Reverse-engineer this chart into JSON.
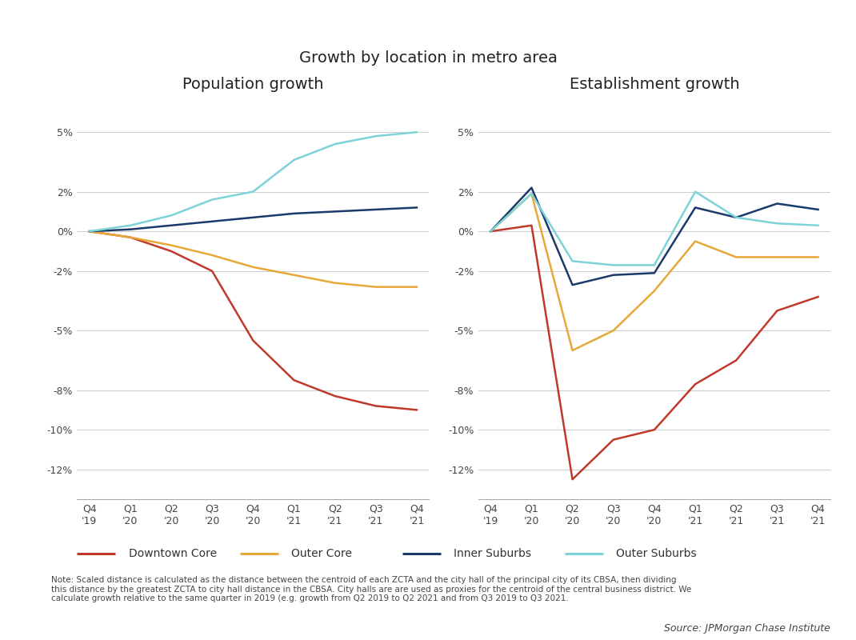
{
  "title": "Growth by location in metro area",
  "left_title": "Population growth",
  "right_title": "Establishment growth",
  "x_labels": [
    "Q4\n'19",
    "Q1\n'20",
    "Q2\n'20",
    "Q3\n'20",
    "Q4\n'20",
    "Q1\n'21",
    "Q2\n'21",
    "Q3\n'21",
    "Q4\n'21"
  ],
  "x_ticks": [
    0,
    1,
    2,
    3,
    4,
    5,
    6,
    7,
    8
  ],
  "pop_downtown_core": [
    0.0,
    -0.003,
    -0.01,
    -0.02,
    -0.055,
    -0.075,
    -0.083,
    -0.088,
    -0.09
  ],
  "pop_outer_core": [
    0.0,
    -0.003,
    -0.007,
    -0.012,
    -0.018,
    -0.022,
    -0.026,
    -0.028,
    -0.028
  ],
  "pop_inner_suburbs": [
    0.0,
    0.001,
    0.003,
    0.005,
    0.007,
    0.009,
    0.01,
    0.011,
    0.012
  ],
  "pop_outer_suburbs": [
    0.0,
    0.003,
    0.008,
    0.016,
    0.02,
    0.036,
    0.044,
    0.048,
    0.05
  ],
  "est_downtown_core": [
    0.0,
    0.003,
    -0.125,
    -0.105,
    -0.1,
    -0.077,
    -0.065,
    -0.04,
    -0.033
  ],
  "est_outer_core": [
    0.0,
    0.019,
    -0.06,
    -0.05,
    -0.03,
    -0.005,
    -0.013,
    -0.013,
    -0.013
  ],
  "est_inner_suburbs": [
    0.0,
    0.022,
    -0.027,
    -0.022,
    -0.021,
    0.012,
    0.007,
    0.014,
    0.011
  ],
  "est_outer_suburbs": [
    0.0,
    0.019,
    -0.015,
    -0.017,
    -0.017,
    0.02,
    0.007,
    0.004,
    0.003
  ],
  "color_downtown": "#C0392B",
  "color_outer_core": "#E8A838",
  "color_inner_suburbs": "#1A3A6B",
  "color_outer_suburbs": "#7DD3D8",
  "ylim": [
    -0.135,
    0.065
  ],
  "yticks": [
    -0.12,
    -0.1,
    -0.08,
    -0.05,
    -0.02,
    0.0,
    0.02,
    0.05
  ],
  "ytick_labels": [
    "-12%",
    "-10%",
    "-8%",
    "-5%",
    "-2%",
    "0%",
    "2%",
    "5%"
  ],
  "note_text": "Note: Scaled distance is calculated as the distance between the centroid of each ZCTA and the city hall of the principal city of its CBSA, then dividing\nthis distance by the greatest ZCTA to city hall distance in the CBSA. City halls are are used as proxies for the centroid of the central business district. We\ncalculate growth relative to the same quarter in 2019 (e.g. growth from Q2 2019 to Q2 2021 and from Q3 2019 to Q3 2021.",
  "source_text": "Source: JPMorgan Chase Institute",
  "legend_items": [
    "Downtown Core",
    "Outer Core",
    "Inner Suburbs",
    "Outer Suburbs"
  ]
}
